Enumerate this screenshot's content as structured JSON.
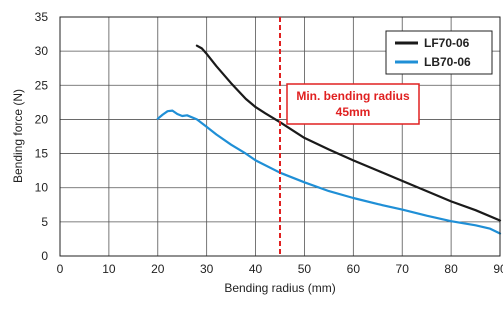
{
  "chart_data": {
    "type": "line",
    "xlabel": "Bending radius (mm)",
    "ylabel": "Bending force (N)",
    "xlim": [
      0,
      90
    ],
    "ylim": [
      0,
      35
    ],
    "x_ticks": [
      0,
      10,
      20,
      30,
      40,
      50,
      60,
      70,
      80,
      90
    ],
    "x_tick_labels": [
      "0",
      "10",
      "20",
      "30",
      "40",
      "50",
      "60",
      "70",
      "80",
      "90"
    ],
    "y_ticks": [
      0,
      5,
      10,
      15,
      20,
      25,
      30,
      35
    ],
    "y_tick_labels": [
      "0",
      "5",
      "10",
      "15",
      "20",
      "25",
      "30",
      "35"
    ],
    "grid": true,
    "legend_position": "top-right",
    "series": [
      {
        "name": "LF70-06",
        "color": "#1a1a1a",
        "points": [
          [
            28,
            30.8
          ],
          [
            29,
            30.4
          ],
          [
            30,
            29.6
          ],
          [
            32,
            27.8
          ],
          [
            35,
            25.3
          ],
          [
            38,
            23.0
          ],
          [
            40,
            21.8
          ],
          [
            42,
            20.9
          ],
          [
            45,
            19.6
          ],
          [
            50,
            17.3
          ],
          [
            55,
            15.6
          ],
          [
            60,
            14.0
          ],
          [
            65,
            12.5
          ],
          [
            70,
            11.0
          ],
          [
            75,
            9.5
          ],
          [
            80,
            8.0
          ],
          [
            85,
            6.7
          ],
          [
            90,
            5.2
          ]
        ]
      },
      {
        "name": "LB70-06",
        "color": "#1f8fd6",
        "points": [
          [
            20,
            20.1
          ],
          [
            21,
            20.7
          ],
          [
            22,
            21.2
          ],
          [
            23,
            21.3
          ],
          [
            24,
            20.8
          ],
          [
            25,
            20.5
          ],
          [
            26,
            20.6
          ],
          [
            28,
            20.0
          ],
          [
            30,
            18.9
          ],
          [
            32,
            17.8
          ],
          [
            35,
            16.3
          ],
          [
            38,
            15.0
          ],
          [
            40,
            14.0
          ],
          [
            45,
            12.2
          ],
          [
            50,
            10.8
          ],
          [
            55,
            9.5
          ],
          [
            60,
            8.5
          ],
          [
            65,
            7.6
          ],
          [
            70,
            6.8
          ],
          [
            75,
            5.9
          ],
          [
            80,
            5.1
          ],
          [
            85,
            4.5
          ],
          [
            88,
            4.0
          ],
          [
            90,
            3.3
          ]
        ]
      }
    ],
    "annotations": [
      {
        "type": "vline",
        "x": 45,
        "color": "#e02020",
        "label_lines": [
          "Min. bending radius",
          "45mm"
        ]
      }
    ]
  }
}
